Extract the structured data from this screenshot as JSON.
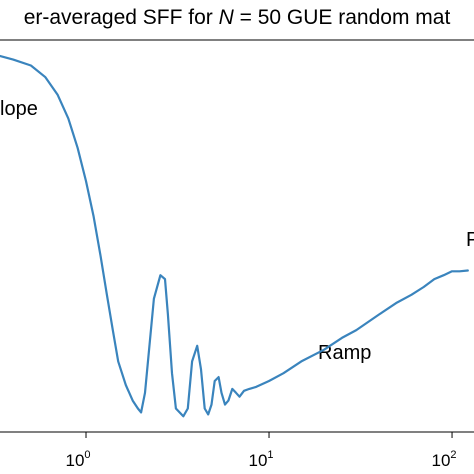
{
  "chart_data": {
    "type": "line",
    "title_parts": [
      "er-averaged SFF for ",
      "N",
      " = 50 GUE random mat"
    ],
    "xscale": "log",
    "xlim_log10": [
      -0.47,
      2.12
    ],
    "ylim": [
      0,
      1
    ],
    "x_ticks": [
      {
        "base": "10",
        "exp": "0",
        "value": 1
      },
      {
        "base": "10",
        "exp": "1",
        "value": 10
      },
      {
        "base": "10",
        "exp": "2",
        "value": 100
      }
    ],
    "annotations": [
      {
        "id": "slope",
        "text": "lope"
      },
      {
        "id": "ramp",
        "text": "Ramp"
      },
      {
        "id": "plateau",
        "text": "P"
      }
    ],
    "line_color": "#3a84bd",
    "series": [
      {
        "values": [
          [
            0.334,
            0.96
          ],
          [
            0.4,
            0.95
          ],
          [
            0.5,
            0.935
          ],
          [
            0.6,
            0.905
          ],
          [
            0.7,
            0.86
          ],
          [
            0.8,
            0.8
          ],
          [
            0.9,
            0.725
          ],
          [
            1.0,
            0.64
          ],
          [
            1.1,
            0.55
          ],
          [
            1.2,
            0.45
          ],
          [
            1.3,
            0.35
          ],
          [
            1.4,
            0.26
          ],
          [
            1.5,
            0.18
          ],
          [
            1.65,
            0.12
          ],
          [
            1.8,
            0.08
          ],
          [
            1.92,
            0.06
          ],
          [
            2.0,
            0.05
          ],
          [
            2.1,
            0.1
          ],
          [
            2.2,
            0.2
          ],
          [
            2.35,
            0.34
          ],
          [
            2.55,
            0.4
          ],
          [
            2.7,
            0.39
          ],
          [
            2.8,
            0.3
          ],
          [
            2.95,
            0.15
          ],
          [
            3.1,
            0.06
          ],
          [
            3.4,
            0.04
          ],
          [
            3.6,
            0.06
          ],
          [
            3.8,
            0.18
          ],
          [
            4.05,
            0.22
          ],
          [
            4.25,
            0.16
          ],
          [
            4.45,
            0.06
          ],
          [
            4.65,
            0.045
          ],
          [
            4.85,
            0.07
          ],
          [
            5.05,
            0.13
          ],
          [
            5.3,
            0.14
          ],
          [
            5.5,
            0.1
          ],
          [
            5.75,
            0.07
          ],
          [
            6.0,
            0.08
          ],
          [
            6.3,
            0.11
          ],
          [
            6.6,
            0.1
          ],
          [
            6.9,
            0.09
          ],
          [
            7.3,
            0.105
          ],
          [
            7.8,
            0.11
          ],
          [
            8.5,
            0.115
          ],
          [
            10.0,
            0.13
          ],
          [
            12.0,
            0.15
          ],
          [
            15.0,
            0.18
          ],
          [
            20.0,
            0.21
          ],
          [
            25.0,
            0.24
          ],
          [
            30.0,
            0.26
          ],
          [
            40.0,
            0.3
          ],
          [
            50.0,
            0.33
          ],
          [
            60.0,
            0.35
          ],
          [
            70.0,
            0.37
          ],
          [
            80.0,
            0.39
          ],
          [
            90.0,
            0.4
          ],
          [
            100.0,
            0.41
          ],
          [
            110.0,
            0.41
          ],
          [
            122.0,
            0.412
          ]
        ]
      }
    ]
  }
}
